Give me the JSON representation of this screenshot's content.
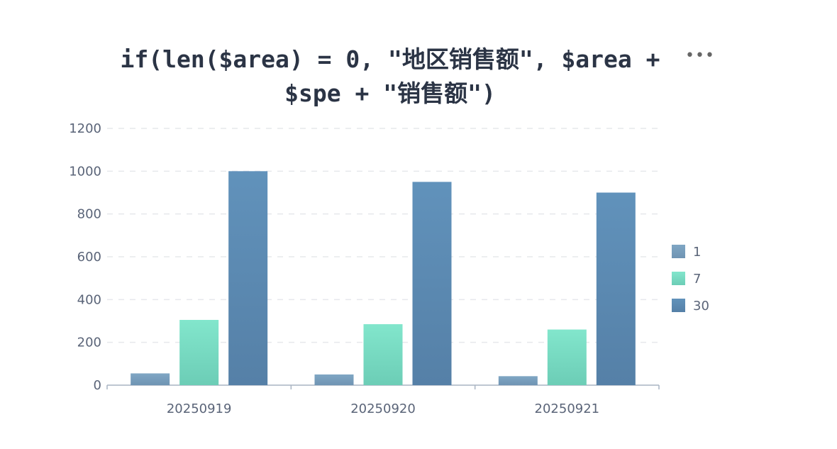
{
  "chart_data": {
    "type": "bar",
    "title": "if(len($area) = 0, \"地区销售额\", $area + $spe + \"销售额\")",
    "categories": [
      "20250919",
      "20250920",
      "20250921"
    ],
    "series": [
      {
        "name": "1",
        "values": [
          55,
          50,
          42
        ],
        "color_top": "#7fa6c4",
        "color_bottom": "#6f94b3"
      },
      {
        "name": "7",
        "values": [
          305,
          285,
          260
        ],
        "color_top": "#82e6cc",
        "color_bottom": "#6ccdb6"
      },
      {
        "name": "30",
        "values": [
          1000,
          950,
          900
        ],
        "color_top": "#6192bb",
        "color_bottom": "#5580a7"
      }
    ],
    "ylim": [
      0,
      1200
    ],
    "yticks": [
      0,
      200,
      400,
      600,
      800,
      1000,
      1200
    ],
    "grid": true,
    "legend_position": "right"
  },
  "ui": {
    "more_label": "•••"
  }
}
